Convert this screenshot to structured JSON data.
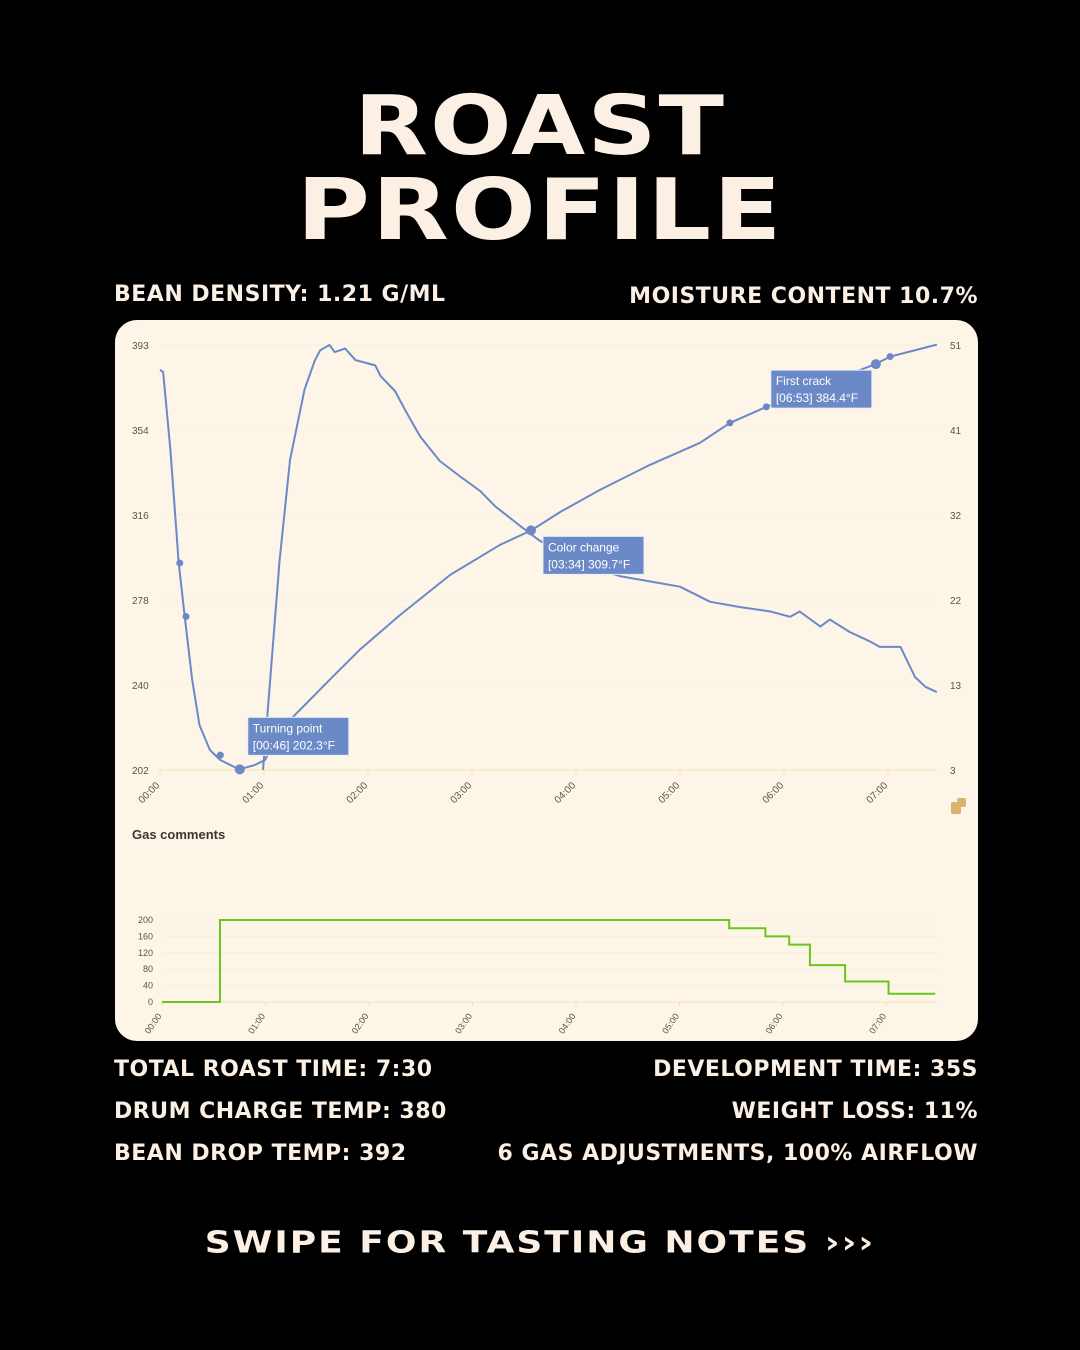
{
  "title": {
    "line1": "ROAST",
    "line2": "PROFILE"
  },
  "top_stats": {
    "bean_density": "BEAN DENSITY: 1.21 G/ML",
    "moisture": "MOISTURE CONTENT 10.7%"
  },
  "bottom_stats": {
    "total_time": "TOTAL ROAST TIME: 7:30",
    "development": "DEVELOPMENT TIME: 35S",
    "charge_temp": "DRUM CHARGE TEMP: 380",
    "weight_loss": "WEIGHT LOSS: 11%",
    "drop_temp": "BEAN DROP TEMP: 392",
    "gas": "6 GAS ADJUSTMENTS, 100% AIRFLOW"
  },
  "footer": {
    "swipe": "SWIPE FOR TASTING NOTES ›››"
  },
  "colors": {
    "background": "#000000",
    "text": "#fcefe4",
    "card": "#fdf6e8",
    "series_blue": "#6a89c6",
    "gas_green": "#6cc41c",
    "axis": "#f5e3a8"
  },
  "corner_icon": "export-icon",
  "chart_data": [
    {
      "type": "line",
      "x_ticks": [
        "00:00",
        "01:00",
        "02:00",
        "03:00",
        "04:00",
        "05:00",
        "06:00",
        "07:00"
      ],
      "xlim": [
        0,
        7.5
      ],
      "y_left_ticks": [
        "393",
        "354",
        "316",
        "278",
        "240",
        "202"
      ],
      "ylim_left": [
        202,
        393
      ],
      "y_right_ticks": [
        "51",
        "41",
        "32",
        "22",
        "13",
        "3"
      ],
      "ylim_right": [
        3,
        51
      ],
      "grid": true,
      "series": [
        {
          "axis": "left",
          "x": [
            0,
            0.03,
            0.1,
            0.18,
            0.24,
            0.31,
            0.38,
            0.48,
            0.58,
            0.76,
            0.91,
            1.01,
            1.11,
            1.25,
            1.44,
            1.63,
            1.92,
            2.31,
            2.79,
            3.27,
            3.57,
            3.85,
            4.23,
            4.71,
            5.19,
            5.48,
            5.83,
            6.15,
            6.54,
            6.88,
            7.02,
            7.47
          ],
          "y": [
            381.8,
            380.9,
            345.9,
            295.1,
            269.9,
            242.5,
            222.2,
            211,
            206.5,
            202.3,
            204.2,
            206.5,
            215.5,
            224.5,
            233.5,
            242.5,
            256,
            271.7,
            289.7,
            303.2,
            309.7,
            318,
            327.9,
            339.1,
            349,
            358,
            365.2,
            371.5,
            378.3,
            384.4,
            387.8,
            393.2
          ]
        },
        {
          "axis": "right",
          "x": [
            0.99,
            1.06,
            1.15,
            1.25,
            1.35,
            1.39,
            1.49,
            1.54,
            1.63,
            1.68,
            1.73,
            1.78,
            1.88,
            2.07,
            2.12,
            2.26,
            2.36,
            2.5,
            2.69,
            2.88,
            3.08,
            3.22,
            3.46,
            3.65,
            3.85,
            4.13,
            4.42,
            4.71,
            5,
            5.29,
            5.58,
            5.87,
            6.06,
            6.15,
            6.35,
            6.44,
            6.63,
            6.83,
            6.92,
            7.12,
            7.26,
            7.36,
            7.47
          ],
          "y": [
            3,
            13.2,
            26.7,
            38,
            43.7,
            46,
            49.3,
            50.4,
            51,
            50.2,
            50.4,
            50.6,
            49.3,
            48.7,
            47.5,
            45.8,
            43.6,
            40.7,
            37.9,
            36.2,
            34.5,
            32.8,
            30.6,
            28.9,
            27.7,
            26,
            24.9,
            24.3,
            23.7,
            22,
            21.4,
            20.9,
            20.3,
            20.9,
            19.2,
            20,
            18.6,
            17.5,
            16.9,
            16.9,
            13.5,
            12.4,
            11.8
          ]
        }
      ],
      "markers": [
        {
          "x": 0.19,
          "y": 295
        },
        {
          "x": 0.25,
          "y": 271
        },
        {
          "x": 0.58,
          "y": 208.7
        },
        {
          "x": 5.48,
          "y": 358
        },
        {
          "x": 5.83,
          "y": 365.2
        },
        {
          "x": 7.02,
          "y": 387.8
        }
      ],
      "annotations": [
        {
          "label": "Turning point",
          "value": "[00:46] 202.3°F",
          "x": 0.767,
          "y": 202.3
        },
        {
          "label": "Color change",
          "value": "[03:34] 309.7°F",
          "x": 3.567,
          "y": 309.7
        },
        {
          "label": "First crack",
          "value": "[06:53] 384.4°F",
          "x": 6.883,
          "y": 384.4
        }
      ]
    },
    {
      "type": "line",
      "title": "Gas comments",
      "x_ticks": [
        "00:00",
        "01:00",
        "02:00",
        "03:00",
        "04:00",
        "05:00",
        "06:00",
        "07:00"
      ],
      "xlim": [
        0,
        7.5
      ],
      "y_ticks": [
        "200",
        "160",
        "120",
        "80",
        "40",
        "0"
      ],
      "ylim": [
        0,
        200
      ],
      "step": true,
      "series": [
        {
          "x": [
            0,
            0.56,
            5.48,
            5.83,
            6.06,
            6.26,
            6.6,
            7.02,
            7.47
          ],
          "y": [
            0,
            200,
            180,
            160,
            140,
            90,
            50,
            20,
            20
          ]
        }
      ]
    }
  ]
}
